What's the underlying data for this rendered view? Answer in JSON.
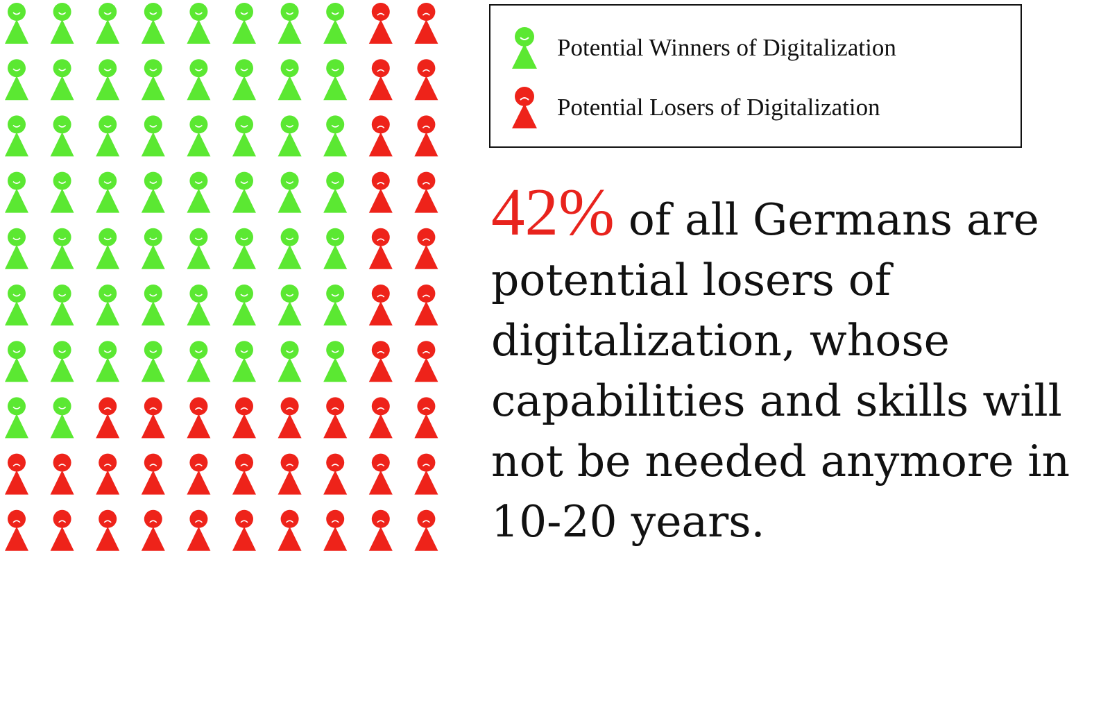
{
  "chart_data": {
    "type": "pictogram",
    "title": "",
    "grid": {
      "rows": 10,
      "cols": 10,
      "total": 100
    },
    "categories": [
      "Potential Winners of Digitalization",
      "Potential Losers of Digitalization"
    ],
    "values": [
      58,
      42
    ],
    "series": [
      {
        "name": "Potential Winners of Digitalization",
        "value": 58,
        "color": "#5be832",
        "face": "smile"
      },
      {
        "name": "Potential Losers of Digitalization",
        "value": 42,
        "color": "#ee231a",
        "face": "frown"
      }
    ],
    "cell_categories": [
      [
        0,
        0,
        0,
        0,
        0,
        0,
        0,
        0,
        1,
        1
      ],
      [
        0,
        0,
        0,
        0,
        0,
        0,
        0,
        0,
        1,
        1
      ],
      [
        0,
        0,
        0,
        0,
        0,
        0,
        0,
        0,
        1,
        1
      ],
      [
        0,
        0,
        0,
        0,
        0,
        0,
        0,
        0,
        1,
        1
      ],
      [
        0,
        0,
        0,
        0,
        0,
        0,
        0,
        0,
        1,
        1
      ],
      [
        0,
        0,
        0,
        0,
        0,
        0,
        0,
        0,
        1,
        1
      ],
      [
        0,
        0,
        0,
        0,
        0,
        0,
        0,
        0,
        1,
        1
      ],
      [
        0,
        0,
        1,
        1,
        1,
        1,
        1,
        1,
        1,
        1
      ],
      [
        1,
        1,
        1,
        1,
        1,
        1,
        1,
        1,
        1,
        1
      ],
      [
        1,
        1,
        1,
        1,
        1,
        1,
        1,
        1,
        1,
        1
      ]
    ],
    "legend_position": "top-right"
  },
  "legend": {
    "winners_label": "Potential Winners of Digitalization",
    "losers_label": "Potential Losers of Digitalization",
    "winners_icon": "smiling-person-icon",
    "losers_icon": "frowning-person-icon"
  },
  "headline": {
    "stat": "42%",
    "text": "of all Germans are potential losers of digitalization, whose capabilities and skills will not be needed anymore in 10-20 years."
  },
  "colors": {
    "winner": "#5be832",
    "loser": "#ee231a",
    "stat_accent": "#e8231d",
    "text": "#111111"
  }
}
